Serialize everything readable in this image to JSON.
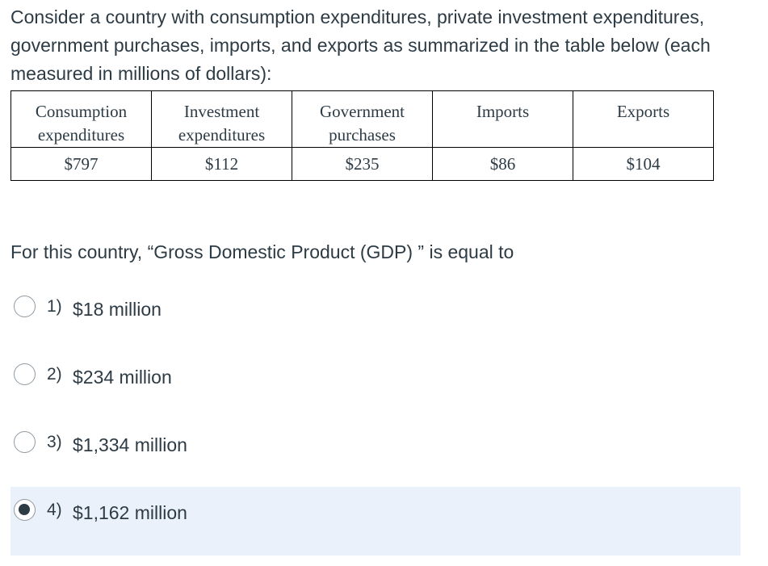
{
  "question": {
    "text": "Consider a country with consumption expenditures, private investment expenditures, government purchases, imports, and exports as summarized in the table below (each measured in millions of dollars):"
  },
  "table": {
    "headers": [
      "Consumption\nexpenditures",
      "Investment\nexpenditures",
      "Government\npurchases",
      "Imports",
      "Exports"
    ],
    "values": [
      "$797",
      "$112",
      "$235",
      "$86",
      "$104"
    ]
  },
  "prompt": "For this country, “Gross Domestic Product (GDP) ” is equal to",
  "options": [
    {
      "num": "1)",
      "text": "$18 million",
      "selected": false
    },
    {
      "num": "2)",
      "text": "$234 million",
      "selected": false
    },
    {
      "num": "3)",
      "text": "$1,334 million",
      "selected": false
    },
    {
      "num": "4)",
      "text": "$1,162 million",
      "selected": true
    }
  ],
  "colors": {
    "text": "#2d3b45",
    "selected_background": "#eaf1fa",
    "radio_border": "#8f9aa3"
  }
}
